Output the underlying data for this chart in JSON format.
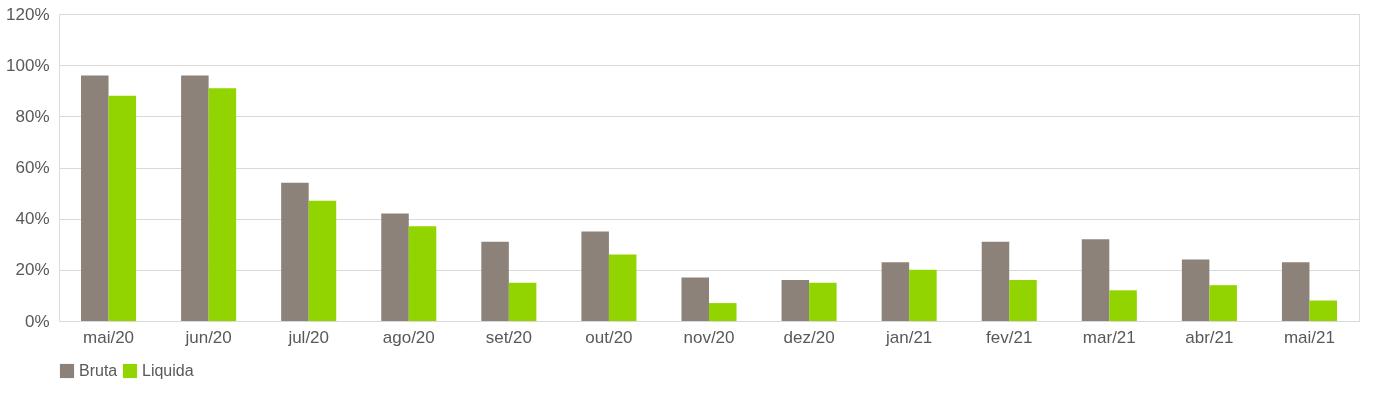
{
  "chart_data": {
    "type": "bar",
    "categories": [
      "mai/20",
      "jun/20",
      "jul/20",
      "ago/20",
      "set/20",
      "out/20",
      "nov/20",
      "dez/20",
      "jan/21",
      "fev/21",
      "mar/21",
      "abr/21",
      "mai/21"
    ],
    "series": [
      {
        "name": "Bruta",
        "color": "#8c8279",
        "values": [
          96,
          96,
          54,
          42,
          31,
          35,
          17,
          16,
          23,
          31,
          32,
          24,
          23
        ]
      },
      {
        "name": "Liquida",
        "color": "#92d400",
        "values": [
          88,
          91,
          47,
          37,
          15,
          26,
          7,
          15,
          20,
          16,
          12,
          14,
          8
        ]
      }
    ],
    "ylim": [
      0,
      120
    ],
    "yticks": [
      {
        "value": 0,
        "label": "0%"
      },
      {
        "value": 20,
        "label": "20%"
      },
      {
        "value": 40,
        "label": "40%"
      },
      {
        "value": 60,
        "label": "60%"
      },
      {
        "value": 80,
        "label": "80%"
      },
      {
        "value": 100,
        "label": "100%"
      },
      {
        "value": 120,
        "label": "120%"
      }
    ],
    "grid": "y",
    "legend": "bottom"
  }
}
